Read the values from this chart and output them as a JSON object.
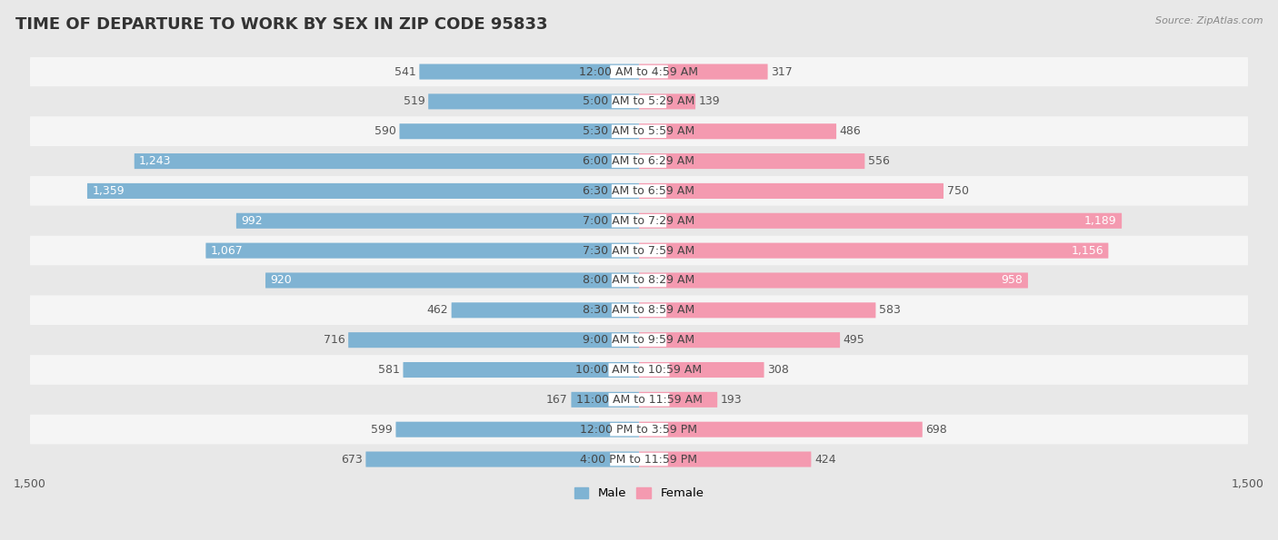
{
  "title": "TIME OF DEPARTURE TO WORK BY SEX IN ZIP CODE 95833",
  "source": "Source: ZipAtlas.com",
  "categories": [
    "12:00 AM to 4:59 AM",
    "5:00 AM to 5:29 AM",
    "5:30 AM to 5:59 AM",
    "6:00 AM to 6:29 AM",
    "6:30 AM to 6:59 AM",
    "7:00 AM to 7:29 AM",
    "7:30 AM to 7:59 AM",
    "8:00 AM to 8:29 AM",
    "8:30 AM to 8:59 AM",
    "9:00 AM to 9:59 AM",
    "10:00 AM to 10:59 AM",
    "11:00 AM to 11:59 AM",
    "12:00 PM to 3:59 PM",
    "4:00 PM to 11:59 PM"
  ],
  "male_values": [
    541,
    519,
    590,
    1243,
    1359,
    992,
    1067,
    920,
    462,
    716,
    581,
    167,
    599,
    673
  ],
  "female_values": [
    317,
    139,
    486,
    556,
    750,
    1189,
    1156,
    958,
    583,
    495,
    308,
    193,
    698,
    424
  ],
  "male_color": "#7fb3d3",
  "female_color": "#f49ab0",
  "male_label": "Male",
  "female_label": "Female",
  "xlim": 1500,
  "bar_height": 0.52,
  "background_color": "#e8e8e8",
  "row_color_light": "#f5f5f5",
  "row_color_dark": "#e8e8e8",
  "title_fontsize": 13,
  "label_fontsize": 9,
  "axis_label_fontsize": 9,
  "category_fontsize": 9
}
